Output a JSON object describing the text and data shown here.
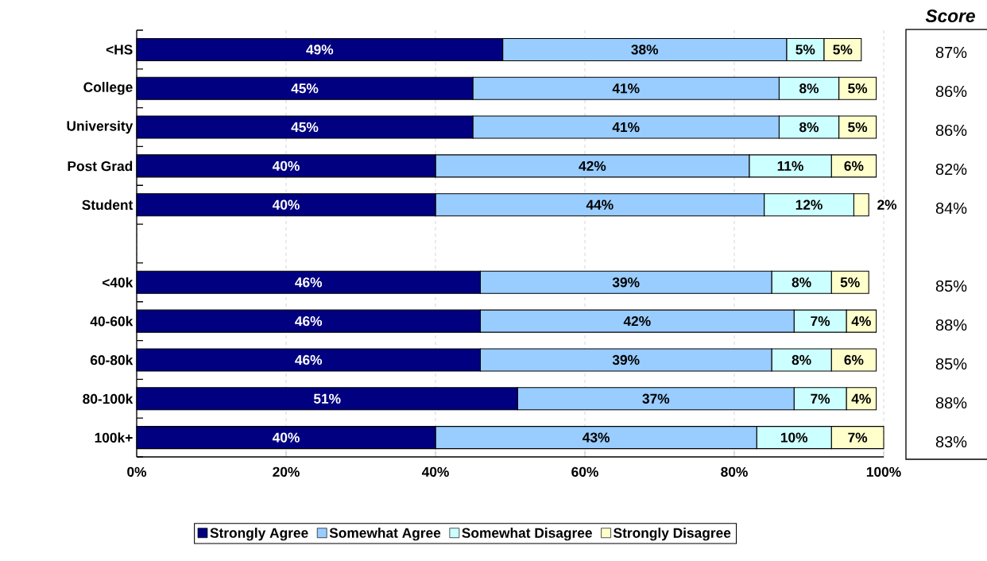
{
  "chart_data": {
    "type": "bar",
    "orientation": "horizontal",
    "stacked": true,
    "categories": [
      "<HS",
      "College",
      "University",
      "Post Grad",
      "Student",
      null,
      "<40k",
      "40-60k",
      "60-80k",
      "80-100k",
      "100k+"
    ],
    "series": [
      {
        "name": "Strongly Agree",
        "color": "#000080",
        "values": [
          49,
          45,
          45,
          40,
          40,
          null,
          46,
          46,
          46,
          51,
          40
        ],
        "value_labels": [
          "49%",
          "45%",
          "45%",
          "40%",
          "40%",
          null,
          "46%",
          "46%",
          "46%",
          "51%",
          "40%"
        ]
      },
      {
        "name": "Somewhat Agree",
        "color": "#99ccff",
        "values": [
          38,
          41,
          41,
          42,
          44,
          null,
          39,
          42,
          39,
          37,
          43
        ],
        "value_labels": [
          "38%",
          "41%",
          "41%",
          "42%",
          "44%",
          null,
          "39%",
          "42%",
          "39%",
          "37%",
          "43%"
        ]
      },
      {
        "name": "Somewhat Disagree",
        "color": "#ccffff",
        "values": [
          5,
          8,
          8,
          11,
          12,
          null,
          8,
          7,
          8,
          7,
          10
        ],
        "value_labels": [
          "5%",
          "8%",
          "8%",
          "11%",
          "12%",
          null,
          "8%",
          "7%",
          "8%",
          "7%",
          "10%"
        ]
      },
      {
        "name": "Strongly Disagree",
        "color": "#ffffcc",
        "values": [
          5,
          5,
          5,
          6,
          2,
          null,
          5,
          4,
          6,
          4,
          7
        ],
        "value_labels": [
          "5%",
          "5%",
          "5%",
          "6%",
          "2%",
          null,
          "5%",
          "4%",
          "6%",
          "4%",
          "7%"
        ]
      }
    ],
    "xlim": [
      0,
      100
    ],
    "xticks": [
      {
        "value": 0,
        "label": "0%"
      },
      {
        "value": 20,
        "label": "20%"
      },
      {
        "value": 40,
        "label": "40%"
      },
      {
        "value": 60,
        "label": "60%"
      },
      {
        "value": 80,
        "label": "80%"
      },
      {
        "value": 100,
        "label": "100%"
      }
    ],
    "grid": "x",
    "legend": "bottom",
    "annotations": [
      "Score",
      "87%",
      "86%",
      "86%",
      "82%",
      "84%",
      "85%",
      "88%",
      "85%",
      "88%",
      "83%"
    ]
  }
}
